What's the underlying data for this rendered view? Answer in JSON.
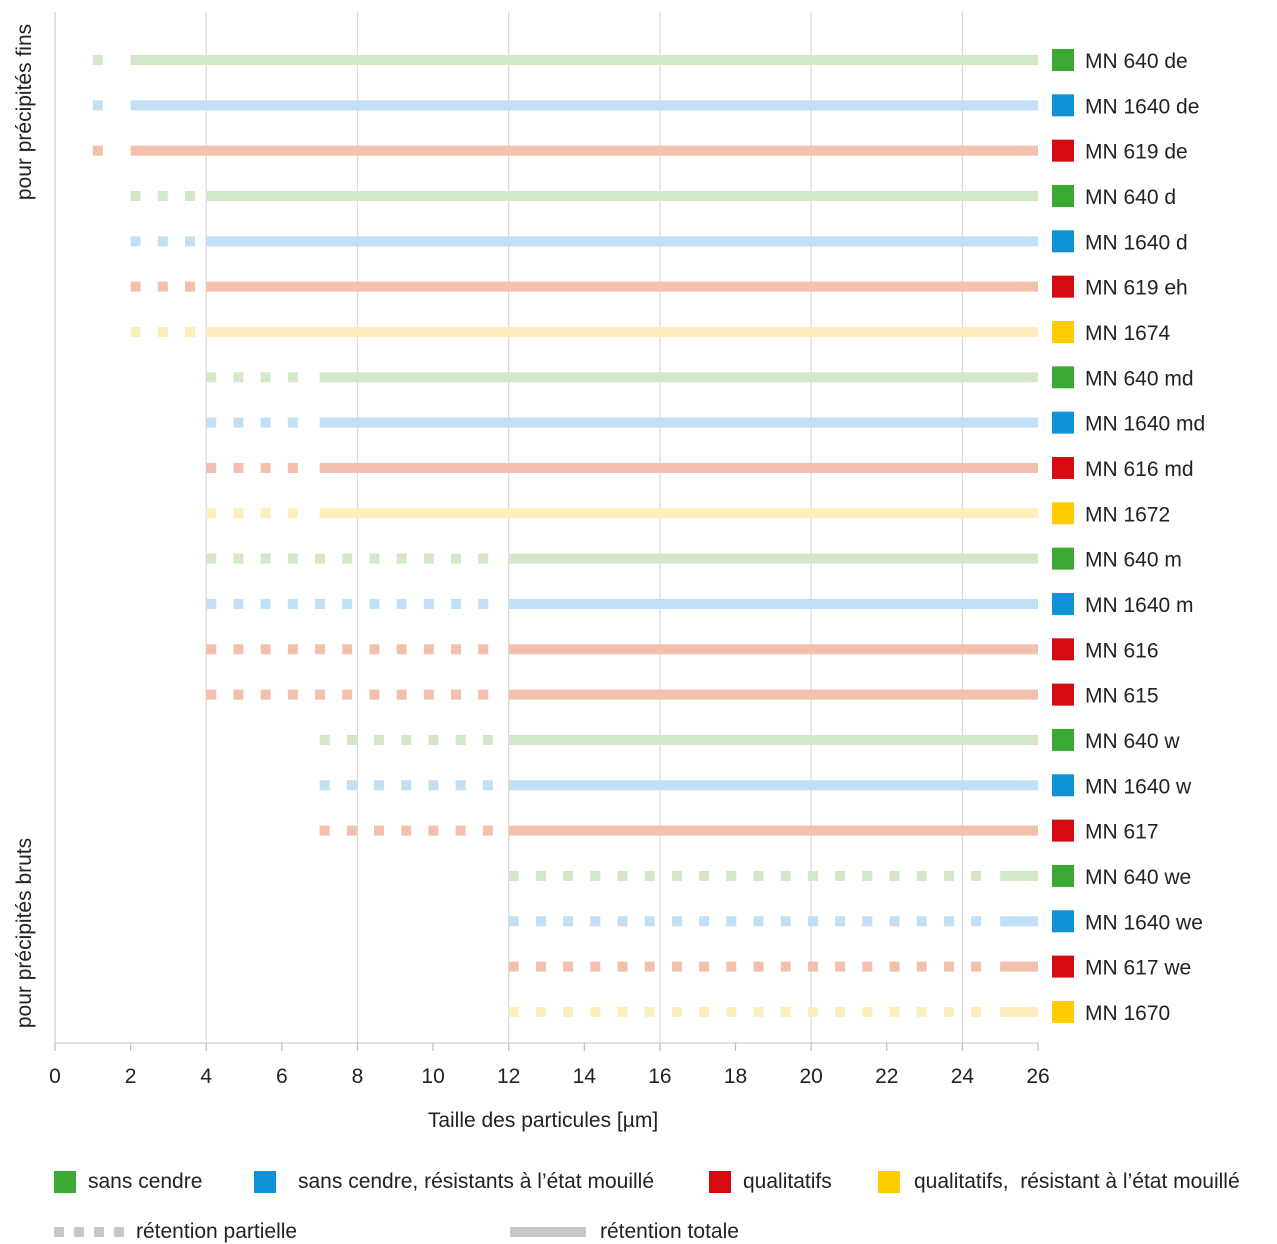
{
  "chart_data": {
    "type": "range-bar",
    "xlabel": "Taille des particules [µm]",
    "xlim": [
      0,
      26
    ],
    "x_ticks": [
      0,
      2,
      4,
      6,
      8,
      10,
      12,
      14,
      16,
      18,
      20,
      22,
      24,
      26
    ],
    "group_labels": [
      "pour précipités fins",
      "pour précipités bruts"
    ],
    "categories": {
      "ashless": {
        "label": "sans cendre",
        "color": "#3aaa35",
        "light": "#d3e8c8"
      },
      "ashless_wet": {
        "label": "sans cendre, résistants à l’état mouillé",
        "color": "#0e93d6",
        "light": "#c2e0f5"
      },
      "qualitative": {
        "label": "qualitatifs",
        "color": "#d50b12",
        "light": "#f3c0ad"
      },
      "qualitative_wet": {
        "label": "qualitatifs,  résistant à l’état mouillé",
        "color": "#ffcc00",
        "light": "#fdeebb"
      }
    },
    "series": [
      {
        "name": "MN 640 de",
        "category": "ashless",
        "partial_start": 1,
        "total_start": 2,
        "end": 26
      },
      {
        "name": "MN 1640 de",
        "category": "ashless_wet",
        "partial_start": 1,
        "total_start": 2,
        "end": 26
      },
      {
        "name": "MN 619 de",
        "category": "qualitative",
        "partial_start": 1,
        "total_start": 2,
        "end": 26
      },
      {
        "name": "MN 640 d",
        "category": "ashless",
        "partial_start": 2,
        "total_start": 4,
        "end": 26
      },
      {
        "name": "MN 1640 d",
        "category": "ashless_wet",
        "partial_start": 2,
        "total_start": 4,
        "end": 26
      },
      {
        "name": "MN 619 eh",
        "category": "qualitative",
        "partial_start": 2,
        "total_start": 4,
        "end": 26
      },
      {
        "name": "MN 1674",
        "category": "qualitative_wet",
        "partial_start": 2,
        "total_start": 4,
        "end": 26
      },
      {
        "name": "MN 640 md",
        "category": "ashless",
        "partial_start": 4,
        "total_start": 7,
        "end": 26
      },
      {
        "name": "MN 1640 md",
        "category": "ashless_wet",
        "partial_start": 4,
        "total_start": 7,
        "end": 26
      },
      {
        "name": "MN 616 md",
        "category": "qualitative",
        "partial_start": 4,
        "total_start": 7,
        "end": 26
      },
      {
        "name": "MN 1672",
        "category": "qualitative_wet",
        "partial_start": 4,
        "total_start": 7,
        "end": 26
      },
      {
        "name": "MN 640 m",
        "category": "ashless",
        "partial_start": 4,
        "total_start": 12,
        "end": 26
      },
      {
        "name": "MN 1640 m",
        "category": "ashless_wet",
        "partial_start": 4,
        "total_start": 12,
        "end": 26
      },
      {
        "name": "MN 616",
        "category": "qualitative",
        "partial_start": 4,
        "total_start": 12,
        "end": 26
      },
      {
        "name": "MN 615",
        "category": "qualitative",
        "partial_start": 4,
        "total_start": 12,
        "end": 26
      },
      {
        "name": "MN 640 w",
        "category": "ashless",
        "partial_start": 7,
        "total_start": 12,
        "end": 26
      },
      {
        "name": "MN 1640 w",
        "category": "ashless_wet",
        "partial_start": 7,
        "total_start": 12,
        "end": 26
      },
      {
        "name": "MN 617",
        "category": "qualitative",
        "partial_start": 7,
        "total_start": 12,
        "end": 26
      },
      {
        "name": "MN 640 we",
        "category": "ashless",
        "partial_start": 12,
        "total_start": 25,
        "end": 26
      },
      {
        "name": "MN 1640 we",
        "category": "ashless_wet",
        "partial_start": 12,
        "total_start": 25,
        "end": 26
      },
      {
        "name": "MN 617 we",
        "category": "qualitative",
        "partial_start": 12,
        "total_start": 25,
        "end": 26
      },
      {
        "name": "MN 1670",
        "category": "qualitative_wet",
        "partial_start": 12,
        "total_start": 25,
        "end": 26
      }
    ],
    "legend_retention": {
      "partial": "rétention partielle",
      "total": "rétention totale",
      "color": "#c8c8c8"
    },
    "grid": true
  }
}
